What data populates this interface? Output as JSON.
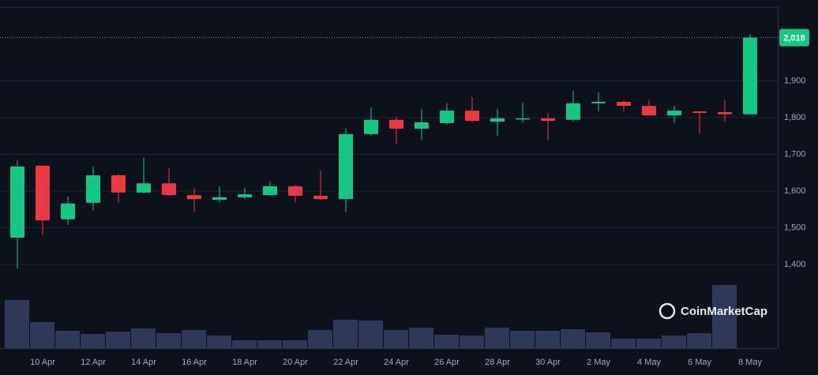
{
  "chart_data": {
    "type": "candlestick",
    "watermark": "CoinMarketCap",
    "categories": [
      null,
      "10 Apr",
      null,
      "12 Apr",
      null,
      "14 Apr",
      null,
      "16 Apr",
      null,
      "18 Apr",
      null,
      "20 Apr",
      null,
      "22 Apr",
      null,
      "24 Apr",
      null,
      "26 Apr",
      null,
      "28 Apr",
      null,
      "30 Apr",
      null,
      "2 May",
      null,
      "4 May",
      null,
      "6 May",
      null,
      "8 May"
    ],
    "open": [
      1473,
      1669,
      1523,
      1568,
      1643,
      1596,
      1621,
      1589,
      1576,
      1583,
      1589,
      1613,
      1587,
      1578,
      1755,
      1794,
      1770,
      1785,
      1819,
      1789,
      1796,
      1798,
      1794,
      1839,
      1843,
      1832,
      1806,
      1817,
      1815,
      1809
    ],
    "high": [
      1684,
      1669,
      1585,
      1667,
      1647,
      1690,
      1662,
      1609,
      1613,
      1609,
      1626,
      1617,
      1656,
      1772,
      1828,
      1802,
      1824,
      1839,
      1856,
      1824,
      1841,
      1813,
      1873,
      1869,
      1847,
      1849,
      1832,
      1817,
      1849,
      2028
    ],
    "low": [
      1389,
      1480,
      1508,
      1548,
      1568,
      1594,
      1587,
      1544,
      1570,
      1578,
      1587,
      1570,
      1574,
      1544,
      1751,
      1727,
      1740,
      1781,
      1787,
      1751,
      1787,
      1738,
      1789,
      1817,
      1817,
      1806,
      1785,
      1755,
      1789,
      1809
    ],
    "close": [
      1667,
      1520,
      1566,
      1643,
      1596,
      1621,
      1589,
      1578,
      1583,
      1591,
      1613,
      1587,
      1578,
      1755,
      1794,
      1770,
      1787,
      1819,
      1791,
      1798,
      1798,
      1791,
      1839,
      1843,
      1832,
      1806,
      1819,
      1813,
      1809,
      2018
    ],
    "volume": [
      61,
      33,
      22,
      18,
      21,
      25,
      19,
      23,
      16,
      10,
      10,
      10,
      23,
      36,
      35,
      23,
      26,
      17,
      16,
      26,
      22,
      22,
      24,
      20,
      12,
      12,
      16,
      19,
      80,
      0
    ],
    "up_color": "#16c784",
    "down_color": "#ea3943",
    "volume_color": "#2f3858",
    "ylim": [
      1174,
      2099
    ],
    "volume_lim": [
      0,
      100
    ],
    "yticks": [
      {
        "value": 1400,
        "label": "1,400"
      },
      {
        "value": 1500,
        "label": "1,500"
      },
      {
        "value": 1600,
        "label": "1,600"
      },
      {
        "value": 1700,
        "label": "1,700"
      },
      {
        "value": 1800,
        "label": "1,800"
      },
      {
        "value": 1900,
        "label": "1,900"
      }
    ],
    "last_price": {
      "value": 2018,
      "label": "2,018"
    },
    "grid": true
  }
}
